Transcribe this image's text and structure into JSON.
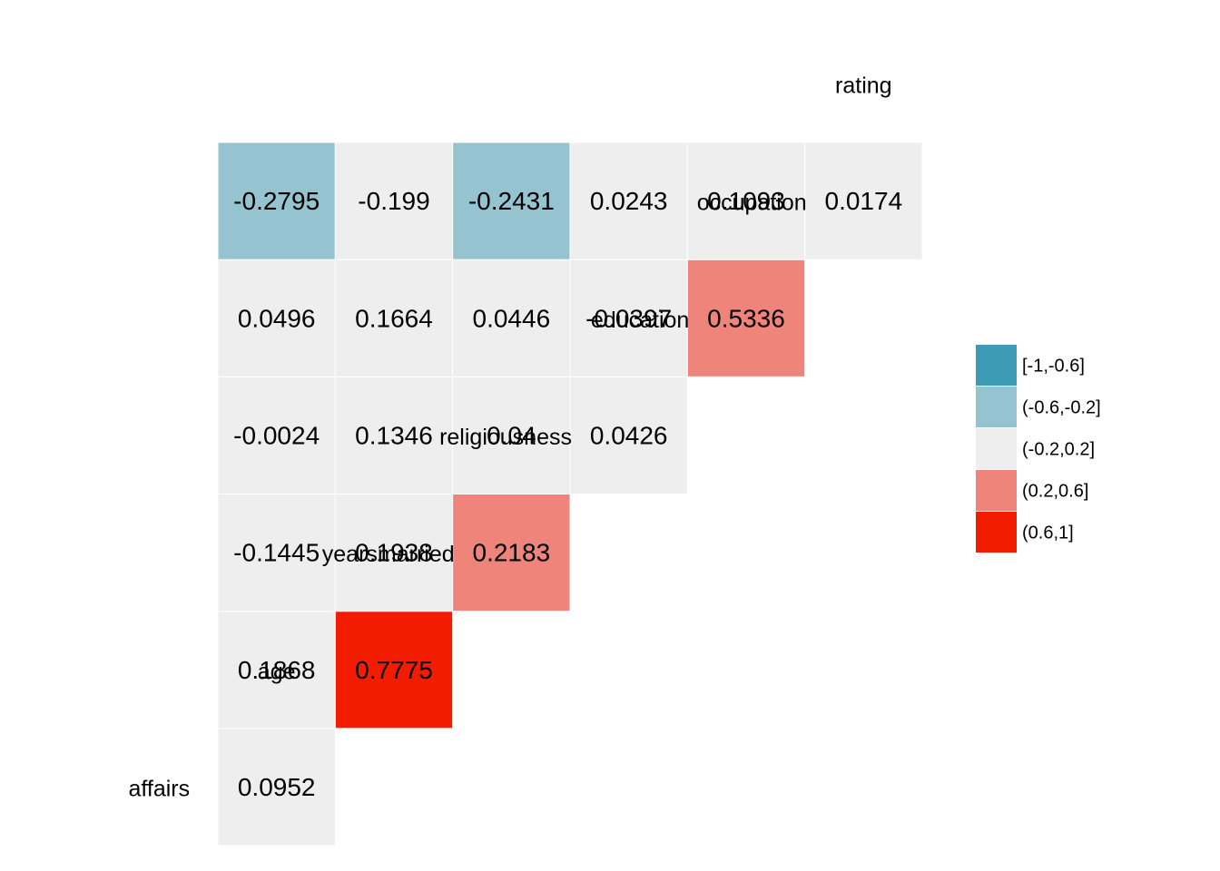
{
  "chart_data": {
    "type": "heatmap",
    "variables": [
      "affairs",
      "age",
      "yearsmarried",
      "religiousness",
      "education",
      "occupation",
      "rating"
    ],
    "cells": [
      {
        "row": "age",
        "col": "affairs",
        "value": 0.0952,
        "label": "0.0952"
      },
      {
        "row": "yearsmarried",
        "col": "affairs",
        "value": 0.1868,
        "label": "0.1868"
      },
      {
        "row": "yearsmarried",
        "col": "age",
        "value": 0.7775,
        "label": "0.7775"
      },
      {
        "row": "religiousness",
        "col": "affairs",
        "value": -0.1445,
        "label": "-0.1445"
      },
      {
        "row": "religiousness",
        "col": "age",
        "value": 0.1938,
        "label": "0.1938"
      },
      {
        "row": "religiousness",
        "col": "yearsmarried",
        "value": 0.2183,
        "label": "0.2183"
      },
      {
        "row": "education",
        "col": "affairs",
        "value": -0.0024,
        "label": "-0.0024"
      },
      {
        "row": "education",
        "col": "age",
        "value": 0.1346,
        "label": "0.1346"
      },
      {
        "row": "education",
        "col": "yearsmarried",
        "value": 0.04,
        "label": "0.04"
      },
      {
        "row": "education",
        "col": "religiousness",
        "value": 0.0426,
        "label": "0.0426"
      },
      {
        "row": "occupation",
        "col": "affairs",
        "value": 0.0496,
        "label": "0.0496"
      },
      {
        "row": "occupation",
        "col": "age",
        "value": 0.1664,
        "label": "0.1664"
      },
      {
        "row": "occupation",
        "col": "yearsmarried",
        "value": 0.0446,
        "label": "0.0446"
      },
      {
        "row": "occupation",
        "col": "religiousness",
        "value": -0.0397,
        "label": "-0.0397"
      },
      {
        "row": "occupation",
        "col": "education",
        "value": 0.5336,
        "label": "0.5336"
      },
      {
        "row": "rating",
        "col": "affairs",
        "value": -0.2795,
        "label": "-0.2795"
      },
      {
        "row": "rating",
        "col": "age",
        "value": -0.199,
        "label": "-0.199"
      },
      {
        "row": "rating",
        "col": "yearsmarried",
        "value": -0.2431,
        "label": "-0.2431"
      },
      {
        "row": "rating",
        "col": "religiousness",
        "value": 0.0243,
        "label": "0.0243"
      },
      {
        "row": "rating",
        "col": "education",
        "value": 0.1093,
        "label": "0.1093"
      },
      {
        "row": "rating",
        "col": "occupation",
        "value": 0.0174,
        "label": "0.0174"
      }
    ],
    "legend": {
      "position": "right",
      "entries": [
        {
          "label": "[-1,-0.6]",
          "color": "#3e9bb5"
        },
        {
          "label": "(-0.6,-0.2]",
          "color": "#95c3cf"
        },
        {
          "label": "(-0.2,0.2]",
          "color": "#eeeeee"
        },
        {
          "label": "(0.2,0.6]",
          "color": "#ef857a"
        },
        {
          "label": "(0.6,1]",
          "color": "#f21c00"
        }
      ]
    },
    "title": "",
    "xlabel": "",
    "ylabel": "",
    "grid": false
  }
}
